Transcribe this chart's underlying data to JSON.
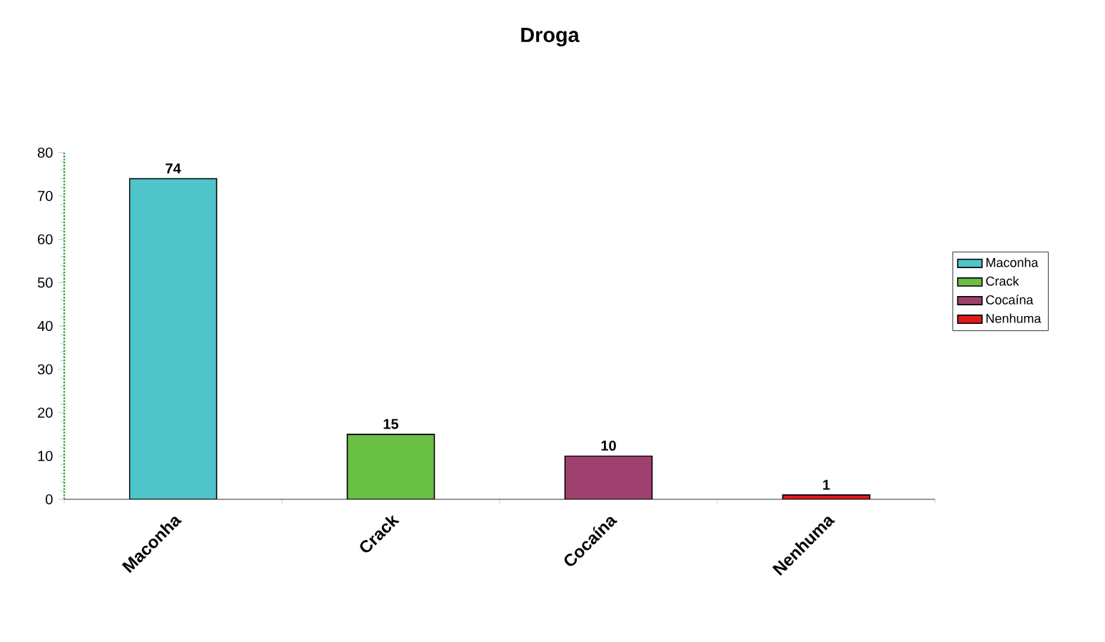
{
  "chart_data": {
    "type": "bar",
    "title": "Droga",
    "categories": [
      "Maconha",
      "Crack",
      "Cocaína",
      "Nenhuma"
    ],
    "series": [
      {
        "name": "Maconha",
        "color": "#4fc4c9",
        "values": [
          74,
          null,
          null,
          null
        ]
      },
      {
        "name": "Crack",
        "color": "#6abf45",
        "values": [
          null,
          15,
          null,
          null
        ]
      },
      {
        "name": "Cocaína",
        "color": "#a0406e",
        "values": [
          null,
          null,
          10,
          null
        ]
      },
      {
        "name": "Nenhuma",
        "color": "#e01b1b",
        "values": [
          null,
          null,
          null,
          1
        ]
      }
    ],
    "ylim": [
      0,
      80
    ],
    "yticks": [
      0,
      10,
      20,
      30,
      40,
      50,
      60,
      70,
      80
    ],
    "data_labels": true,
    "legend": "right",
    "grid": false
  }
}
